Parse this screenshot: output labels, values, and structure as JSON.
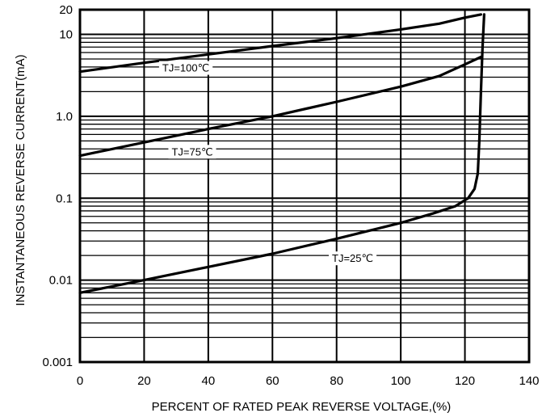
{
  "chart_data": {
    "type": "line",
    "title": "",
    "xlabel": "PERCENT OF RATED PEAK REVERSE VOLTAGE,(%)",
    "ylabel": "INSTANTANEOUS REVERSE CURRENT(mA)",
    "xlim": [
      0,
      140
    ],
    "ylim": [
      0.001,
      20
    ],
    "y_scale": "log",
    "grid": true,
    "x_ticks": [
      {
        "value": 0,
        "label": "0"
      },
      {
        "value": 20,
        "label": "20"
      },
      {
        "value": 40,
        "label": "40"
      },
      {
        "value": 60,
        "label": "60"
      },
      {
        "value": 80,
        "label": "80"
      },
      {
        "value": 100,
        "label": "100"
      },
      {
        "value": 120,
        "label": "120"
      },
      {
        "value": 140,
        "label": "140"
      }
    ],
    "y_ticks": [
      {
        "value": 0.001,
        "label": "0.001"
      },
      {
        "value": 0.01,
        "label": "0.01"
      },
      {
        "value": 0.1,
        "label": "0.1"
      },
      {
        "value": 1,
        "label": "1.0"
      },
      {
        "value": 10,
        "label": "10"
      },
      {
        "value": 20,
        "label": "20"
      }
    ],
    "series": [
      {
        "name": "TJ=100℃",
        "label_at": {
          "x": 33,
          "y": 3.8
        },
        "x": [
          0,
          20,
          40,
          60,
          80,
          100,
          112,
          120,
          125
        ],
        "y": [
          3.5,
          4.5,
          5.7,
          7.2,
          9.0,
          11.5,
          13.5,
          16.0,
          17.5
        ]
      },
      {
        "name": "TJ=75℃",
        "label_at": {
          "x": 35,
          "y": 0.36
        },
        "x": [
          0,
          20,
          40,
          60,
          80,
          100,
          112,
          120,
          125
        ],
        "y": [
          0.33,
          0.48,
          0.7,
          1.0,
          1.5,
          2.3,
          3.1,
          4.3,
          5.3
        ]
      },
      {
        "name": "TJ=25℃",
        "label_at": {
          "x": 85,
          "y": 0.018
        },
        "x": [
          0,
          20,
          40,
          60,
          80,
          100,
          110,
          117,
          121,
          123,
          124,
          124.5,
          125,
          125.5,
          126
        ],
        "y": [
          0.007,
          0.01,
          0.0145,
          0.021,
          0.032,
          0.05,
          0.065,
          0.08,
          0.1,
          0.13,
          0.2,
          0.5,
          2.0,
          7.0,
          17.5
        ]
      }
    ]
  }
}
